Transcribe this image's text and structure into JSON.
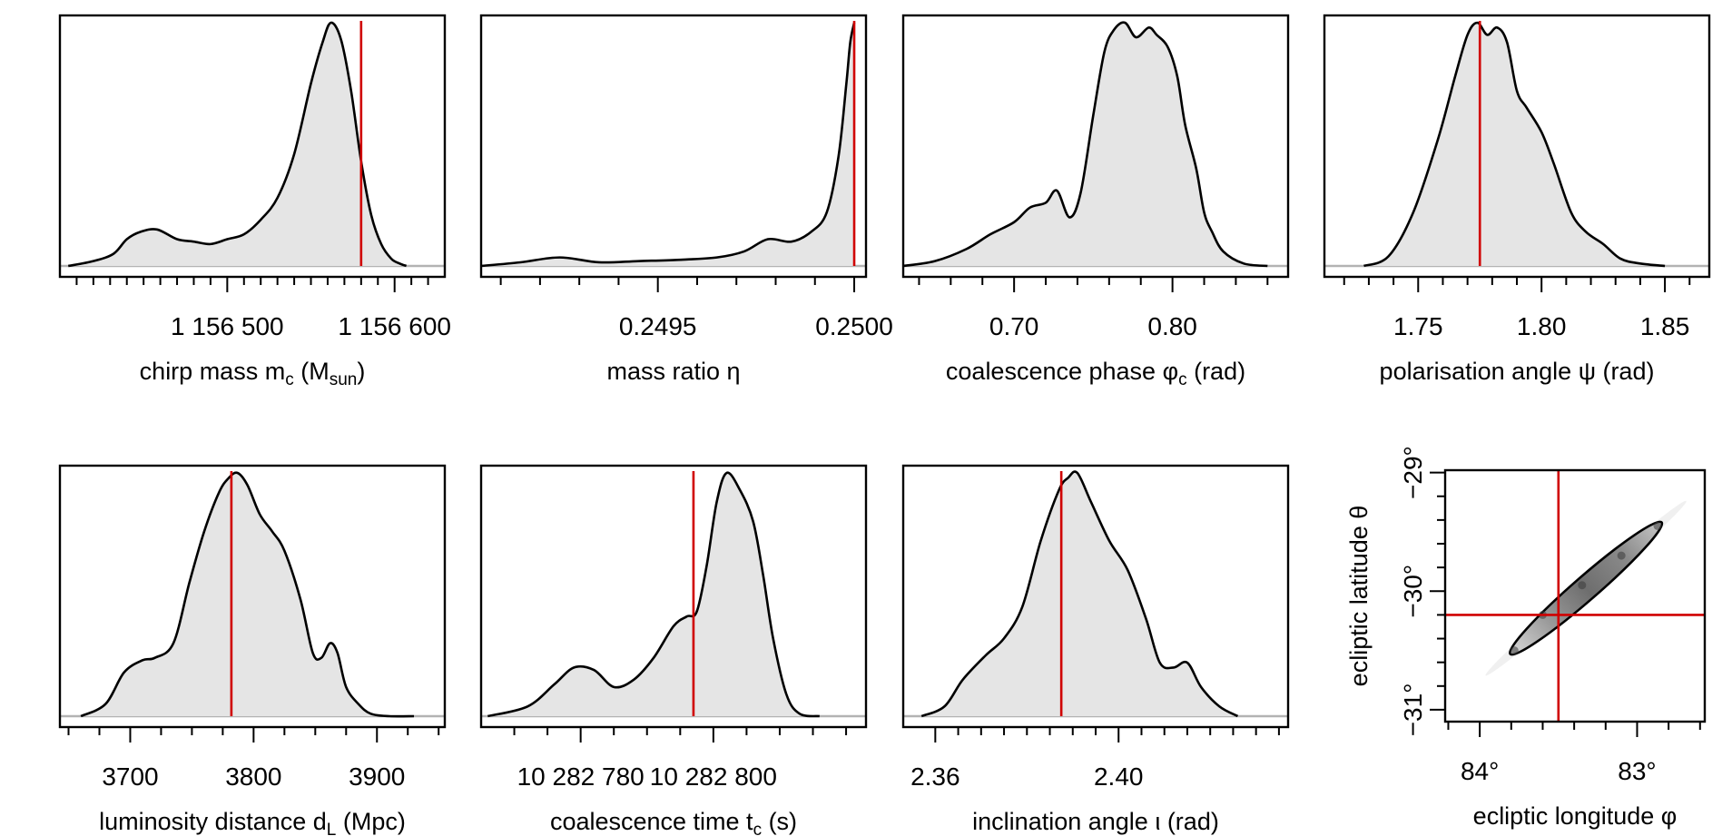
{
  "chart_data": [
    {
      "type": "area",
      "id": "chirp-mass",
      "xlabel": {
        "main": "chirp mass m",
        "sub": "c",
        "rest": " (M",
        "sub2": "sun",
        "tail": ")"
      },
      "xlim": [
        1156400,
        1156630
      ],
      "tick_labels": [
        {
          "value": 1156500,
          "label": "1 156 500"
        },
        {
          "value": 1156600,
          "label": "1 156 600"
        }
      ],
      "minor_ticks": [
        1156410,
        1156420,
        1156430,
        1156440,
        1156450,
        1156460,
        1156470,
        1156480,
        1156490,
        1156510,
        1156520,
        1156530,
        1156540,
        1156550,
        1156560,
        1156570,
        1156580,
        1156590,
        1156610,
        1156620
      ],
      "true_value": 1156580,
      "density": {
        "x": [
          1156405,
          1156420,
          1156432,
          1156440,
          1156448,
          1156458,
          1156470,
          1156480,
          1156490,
          1156500,
          1156510,
          1156520,
          1156530,
          1156540,
          1156550,
          1156557,
          1156562,
          1156568,
          1156574,
          1156580,
          1156586,
          1156592,
          1156598,
          1156603,
          1156607
        ],
        "y": [
          0.0,
          0.02,
          0.05,
          0.11,
          0.14,
          0.15,
          0.11,
          0.1,
          0.09,
          0.11,
          0.13,
          0.19,
          0.28,
          0.46,
          0.75,
          0.92,
          1.0,
          0.93,
          0.72,
          0.43,
          0.21,
          0.09,
          0.03,
          0.01,
          0.0
        ]
      }
    },
    {
      "type": "area",
      "id": "mass-ratio",
      "xlabel": {
        "main": "mass ratio η"
      },
      "xlim": [
        0.24905,
        0.25003
      ],
      "tick_labels": [
        {
          "value": 0.2495,
          "label": "0.2495"
        },
        {
          "value": 0.25,
          "label": "0.2500"
        }
      ],
      "minor_ticks": [
        0.2491,
        0.2492,
        0.2493,
        0.2494,
        0.2496,
        0.2497,
        0.2498,
        0.2499
      ],
      "true_value": 0.25,
      "density": {
        "x": [
          0.24905,
          0.24915,
          0.24925,
          0.24935,
          0.24945,
          0.24955,
          0.24965,
          0.24972,
          0.24978,
          0.24984,
          0.24989,
          0.24993,
          0.24996,
          0.24998,
          0.24999,
          0.25
        ],
        "y": [
          0.0,
          0.015,
          0.035,
          0.015,
          0.02,
          0.025,
          0.035,
          0.06,
          0.11,
          0.1,
          0.14,
          0.22,
          0.45,
          0.75,
          0.92,
          1.0
        ]
      }
    },
    {
      "type": "area",
      "id": "coalescence-phase",
      "xlabel": {
        "main": "coalescence phase φ",
        "sub": "c",
        "rest": " (rad)"
      },
      "xlim": [
        0.63,
        0.873
      ],
      "tick_labels": [
        {
          "value": 0.7,
          "label": "0.70"
        },
        {
          "value": 0.8,
          "label": "0.80"
        }
      ],
      "minor_ticks": [
        0.64,
        0.66,
        0.68,
        0.72,
        0.74,
        0.76,
        0.78,
        0.82,
        0.84,
        0.86
      ],
      "true_value": null,
      "density": {
        "x": [
          0.63,
          0.65,
          0.67,
          0.685,
          0.7,
          0.71,
          0.72,
          0.727,
          0.735,
          0.742,
          0.75,
          0.757,
          0.763,
          0.77,
          0.777,
          0.785,
          0.79,
          0.797,
          0.803,
          0.808,
          0.815,
          0.82,
          0.825,
          0.832,
          0.845,
          0.86
        ],
        "y": [
          0.0,
          0.02,
          0.07,
          0.13,
          0.18,
          0.24,
          0.26,
          0.31,
          0.2,
          0.3,
          0.62,
          0.88,
          0.97,
          1.0,
          0.94,
          0.98,
          0.95,
          0.9,
          0.78,
          0.58,
          0.4,
          0.22,
          0.14,
          0.06,
          0.01,
          0.0
        ]
      }
    },
    {
      "type": "area",
      "id": "polarisation-angle",
      "xlabel": {
        "main": "polarisation angle ψ (rad)"
      },
      "xlim": [
        1.712,
        1.868
      ],
      "tick_labels": [
        {
          "value": 1.75,
          "label": "1.75"
        },
        {
          "value": 1.8,
          "label": "1.80"
        },
        {
          "value": 1.85,
          "label": "1.85"
        }
      ],
      "minor_ticks": [
        1.72,
        1.73,
        1.74,
        1.76,
        1.77,
        1.78,
        1.79,
        1.81,
        1.82,
        1.83,
        1.84,
        1.86
      ],
      "true_value": 1.775,
      "density": {
        "x": [
          1.728,
          1.738,
          1.748,
          1.758,
          1.765,
          1.77,
          1.774,
          1.778,
          1.782,
          1.786,
          1.79,
          1.794,
          1.8,
          1.805,
          1.812,
          1.818,
          1.825,
          1.832,
          1.84,
          1.85
        ],
        "y": [
          0.0,
          0.04,
          0.22,
          0.52,
          0.78,
          0.95,
          1.0,
          0.95,
          0.98,
          0.92,
          0.72,
          0.65,
          0.55,
          0.42,
          0.22,
          0.14,
          0.09,
          0.03,
          0.01,
          0.0
        ]
      }
    },
    {
      "type": "area",
      "id": "luminosity-distance",
      "xlabel": {
        "main": "luminosity distance d",
        "sub": "L",
        "rest": " (Mpc)"
      },
      "xlim": [
        3643,
        3955
      ],
      "tick_labels": [
        {
          "value": 3700,
          "label": "3700"
        },
        {
          "value": 3800,
          "label": "3800"
        },
        {
          "value": 3900,
          "label": "3900"
        }
      ],
      "minor_ticks": [
        3650,
        3675,
        3725,
        3750,
        3775,
        3825,
        3850,
        3875,
        3925,
        3950
      ],
      "true_value": 3782,
      "density": {
        "x": [
          3660,
          3680,
          3695,
          3710,
          3720,
          3735,
          3748,
          3760,
          3772,
          3780,
          3787,
          3795,
          3805,
          3815,
          3825,
          3838,
          3848,
          3855,
          3862,
          3868,
          3875,
          3885,
          3895,
          3910,
          3930
        ],
        "y": [
          0.0,
          0.05,
          0.18,
          0.23,
          0.24,
          0.3,
          0.55,
          0.76,
          0.92,
          0.98,
          1.0,
          0.95,
          0.83,
          0.76,
          0.68,
          0.48,
          0.26,
          0.24,
          0.3,
          0.26,
          0.12,
          0.05,
          0.01,
          0.0,
          0.0
        ]
      }
    },
    {
      "type": "area",
      "id": "coalescence-time",
      "xlabel": {
        "main": "coalescence time t",
        "sub": "c",
        "rest": " (s)"
      },
      "xlim": [
        10282765,
        10282823
      ],
      "tick_labels": [
        {
          "value": 10282780,
          "label": "10 282 780"
        },
        {
          "value": 10282800,
          "label": "10 282 800"
        }
      ],
      "minor_ticks": [
        10282770,
        10282775,
        10282785,
        10282790,
        10282795,
        10282805,
        10282810,
        10282815,
        10282820
      ],
      "true_value": 10282797,
      "density": {
        "x": [
          10282766,
          10282772,
          10282776,
          10282779,
          10282782,
          10282785,
          10282788,
          10282791,
          10282794,
          10282796,
          10282797.5,
          10282799,
          10282800.5,
          10282802,
          10282804,
          10282806,
          10282807.5,
          10282809,
          10282811,
          10282813,
          10282816
        ],
        "y": [
          0.0,
          0.04,
          0.13,
          0.2,
          0.19,
          0.12,
          0.15,
          0.24,
          0.37,
          0.41,
          0.43,
          0.62,
          0.88,
          1.0,
          0.93,
          0.8,
          0.58,
          0.32,
          0.09,
          0.01,
          0.0
        ]
      }
    },
    {
      "type": "area",
      "id": "inclination-angle",
      "xlabel": {
        "main": "inclination angle ι (rad)"
      },
      "xlim": [
        2.353,
        2.437
      ],
      "tick_labels": [
        {
          "value": 2.36,
          "label": "2.36"
        },
        {
          "value": 2.4,
          "label": "2.40"
        }
      ],
      "minor_ticks": [
        2.365,
        2.37,
        2.375,
        2.38,
        2.385,
        2.39,
        2.395,
        2.405,
        2.41,
        2.415,
        2.42,
        2.425,
        2.43,
        2.435
      ],
      "true_value": 2.3875,
      "density": {
        "x": [
          2.357,
          2.362,
          2.366,
          2.371,
          2.375,
          2.379,
          2.383,
          2.387,
          2.389,
          2.391,
          2.394,
          2.398,
          2.402,
          2.406,
          2.409,
          2.412,
          2.415,
          2.418,
          2.422,
          2.426
        ],
        "y": [
          0.0,
          0.04,
          0.15,
          0.25,
          0.32,
          0.45,
          0.72,
          0.93,
          0.98,
          1.0,
          0.88,
          0.72,
          0.6,
          0.4,
          0.22,
          0.2,
          0.22,
          0.12,
          0.04,
          0.0
        ]
      }
    },
    {
      "type": "heatmap",
      "id": "sky-position",
      "xlabel": {
        "main": "ecliptic longitude φ"
      },
      "ylabel": {
        "main": "ecliptic latitude θ"
      },
      "xlim": [
        84.22,
        82.57
      ],
      "ylim": [
        -31.1,
        -28.98
      ],
      "x_tick_labels": [
        {
          "value": 84,
          "label": "84°"
        },
        {
          "value": 83,
          "label": "83°"
        }
      ],
      "x_minor_ticks": [
        84.2,
        83.8,
        83.6,
        83.4,
        83.2,
        82.8,
        82.6
      ],
      "y_tick_labels": [
        {
          "value": -29,
          "label": "−29°"
        },
        {
          "value": -30,
          "label": "−30°"
        },
        {
          "value": -31,
          "label": "−31°"
        }
      ],
      "y_minor_ticks": [
        -29.2,
        -29.4,
        -29.6,
        -29.8,
        -30.2,
        -30.4,
        -30.6,
        -30.8
      ],
      "true_value": {
        "x": 83.5,
        "y": -30.2
      },
      "posterior_ridge": {
        "x": [
          83.78,
          83.6,
          83.35,
          83.1,
          82.87
        ],
        "y": [
          -30.5,
          -30.2,
          -29.95,
          -29.7,
          -29.45
        ]
      }
    }
  ]
}
